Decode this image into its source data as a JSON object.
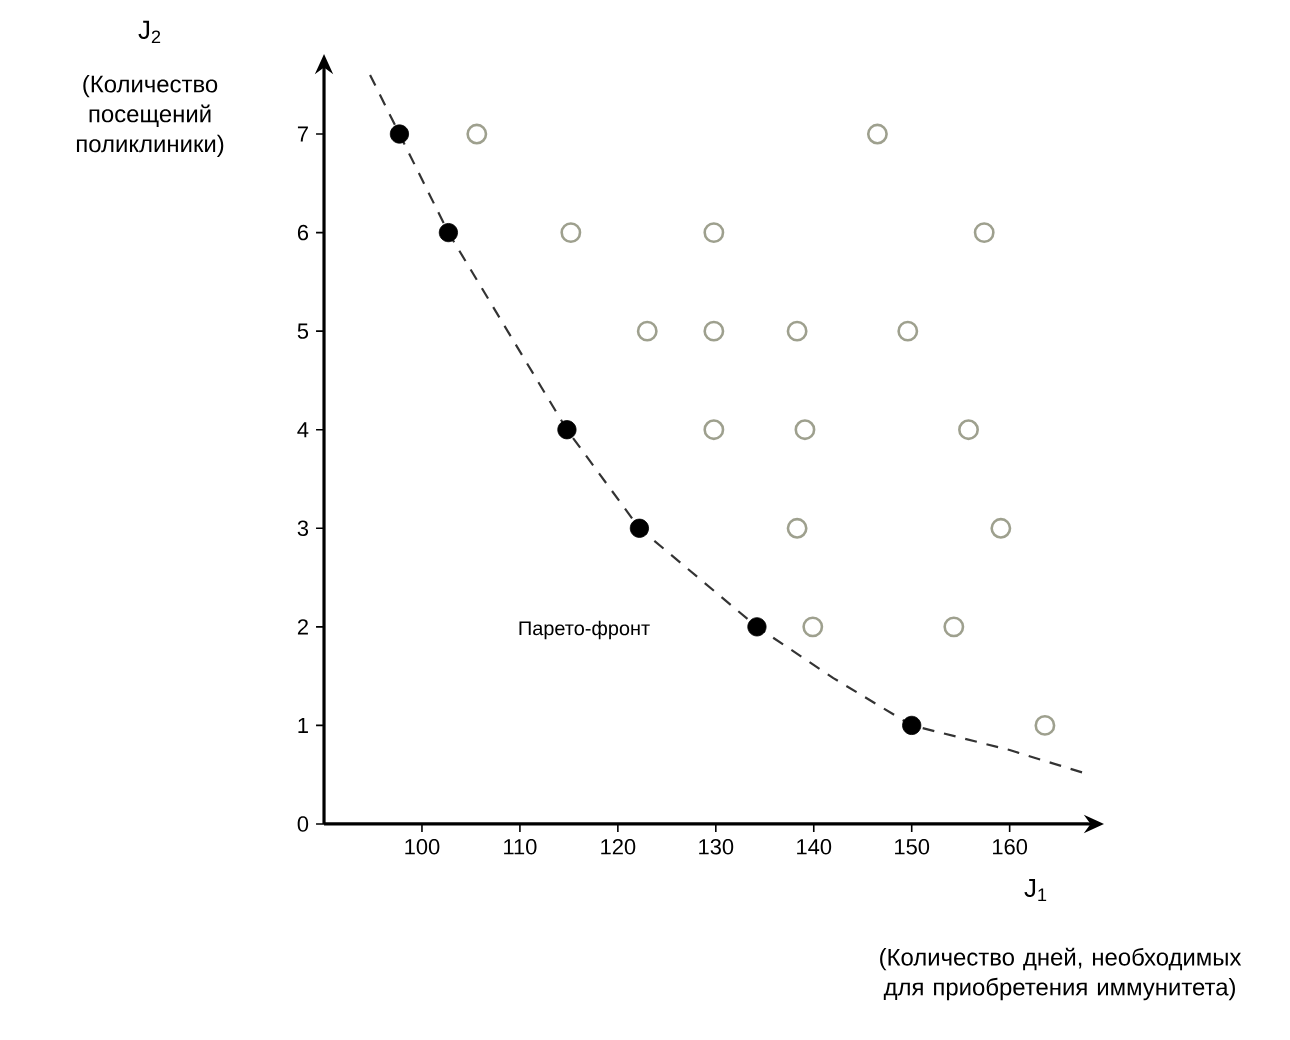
{
  "chart_data": {
    "type": "scatter",
    "xlabel": "J$_{1}$",
    "annotations": [
      "Парето-фронт",
      "(Количество дней, необходимых для приобретения иммунитета)",
      "J$_{2}$",
      "(Количество посещений поликлиники)"
    ],
    "xlim": [
      90,
      168
    ],
    "ylim": [
      0,
      7.65
    ],
    "xticks": [
      100,
      110,
      120,
      130,
      140,
      150,
      160
    ],
    "yticks": [
      0,
      1,
      2,
      3,
      4,
      5,
      6,
      7
    ],
    "series": [
      {
        "type": "line",
        "color": "#333333",
        "line_style": "dashed",
        "marker": "none",
        "x": [
          94.7,
          97.7,
          102.7,
          114.8,
          122.2,
          134.2,
          142,
          150,
          160,
          167.5
        ],
        "values": [
          7.6,
          7,
          6,
          4,
          3,
          2,
          1.48,
          1,
          0.75,
          0.52
        ]
      },
      {
        "color": "#000000",
        "marker": "circle",
        "x": [
          97.7,
          102.7,
          114.8,
          122.2,
          134.2,
          150
        ],
        "values": [
          7,
          6,
          4,
          3,
          2,
          1
        ]
      },
      {
        "color": "#9ea08e",
        "marker": "circle",
        "x": [
          105.6,
          146.5,
          115.2,
          129.8,
          157.4,
          123.0,
          129.8,
          138.3,
          149.6,
          129.8,
          139.1,
          155.8,
          138.3,
          159.1,
          139.9,
          154.3,
          163.6
        ],
        "values": [
          7,
          7,
          6,
          6,
          6,
          5,
          5,
          5,
          5,
          4,
          4,
          4,
          3,
          3,
          2,
          2,
          1
        ]
      }
    ]
  }
}
